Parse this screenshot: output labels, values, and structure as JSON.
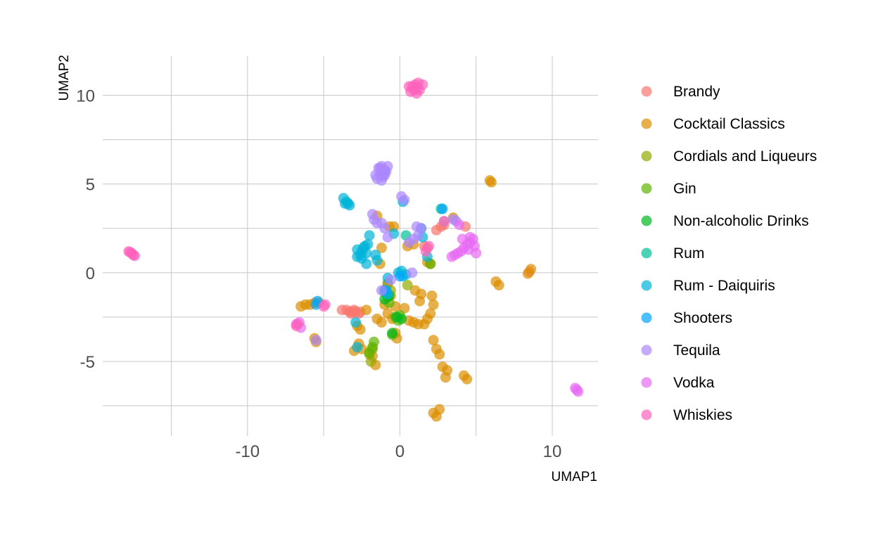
{
  "chart_data": {
    "type": "scatter",
    "title": "",
    "xlabel": "UMAP1",
    "ylabel": "UMAP2",
    "xlim": [
      -19.5,
      13
    ],
    "ylim": [
      -9.2,
      12.2
    ],
    "x_ticks": [
      -10,
      0,
      10
    ],
    "x_tick_labels": [
      "-10",
      "0",
      "10"
    ],
    "y_ticks": [
      -5,
      0,
      5,
      10
    ],
    "y_tick_labels": [
      "-5",
      "0",
      "5",
      "10"
    ],
    "x_minor_ticks": [
      -15,
      -5,
      5
    ],
    "y_minor_ticks": [
      -7.5,
      -2.5,
      2.5,
      7.5
    ],
    "grid": true,
    "legend_position": "right",
    "series": [
      {
        "name": "Brandy",
        "color": "#F8766D",
        "points": [
          [
            -3.8,
            -2.1
          ],
          [
            -3.5,
            -2.1
          ],
          [
            -3.3,
            -2.2
          ],
          [
            -3.1,
            -2.2
          ],
          [
            -2.9,
            -2.2
          ],
          [
            -2.7,
            -2.3
          ],
          [
            -3.2,
            -2.3
          ],
          [
            -2.6,
            -2.2
          ],
          [
            -0.8,
            -0.6
          ],
          [
            -0.9,
            -0.9
          ],
          [
            -1.0,
            -1.0
          ],
          [
            2.4,
            2.4
          ],
          [
            2.7,
            2.6
          ],
          [
            2.9,
            2.7
          ],
          [
            1.6,
            1.5
          ],
          [
            1.8,
            1.4
          ],
          [
            8.5,
            0.05
          ],
          [
            4.3,
            2.6
          ],
          [
            -3.0,
            -2.1
          ]
        ]
      },
      {
        "name": "Cocktail Classics",
        "color": "#DB8E00",
        "points": [
          [
            -6.5,
            -1.9
          ],
          [
            -6.2,
            -1.8
          ],
          [
            -5.9,
            -1.8
          ],
          [
            -5.6,
            -1.7
          ],
          [
            -5.3,
            -1.7
          ],
          [
            -5.6,
            -3.7
          ],
          [
            -5.5,
            -3.9
          ],
          [
            -2.8,
            -3.0
          ],
          [
            -2.6,
            -3.2
          ],
          [
            -2.2,
            -2.1
          ],
          [
            -2.7,
            -4.0
          ],
          [
            -2.5,
            -4.3
          ],
          [
            -3.0,
            -4.4
          ],
          [
            -1.8,
            -4.7
          ],
          [
            -1.6,
            -5.2
          ],
          [
            -1.5,
            -2.6
          ],
          [
            -1.2,
            -2.8
          ],
          [
            -0.8,
            -2.3
          ],
          [
            -0.5,
            -2.6
          ],
          [
            -0.3,
            -3.4
          ],
          [
            -0.2,
            -3.7
          ],
          [
            -0.6,
            -1.3
          ],
          [
            -0.3,
            -1.9
          ],
          [
            -1.0,
            -1.8
          ],
          [
            0.3,
            -2.0
          ],
          [
            0.6,
            -2.7
          ],
          [
            0.9,
            -2.8
          ],
          [
            1.2,
            -2.9
          ],
          [
            1.6,
            -2.9
          ],
          [
            1.8,
            -2.6
          ],
          [
            2.0,
            -2.3
          ],
          [
            2.2,
            -1.8
          ],
          [
            2.1,
            -1.3
          ],
          [
            1.4,
            -1.2
          ],
          [
            1.0,
            -1.0
          ],
          [
            1.3,
            -1.6
          ],
          [
            2.2,
            -3.8
          ],
          [
            2.4,
            -4.3
          ],
          [
            2.6,
            -4.6
          ],
          [
            2.8,
            -5.3
          ],
          [
            3.1,
            -5.5
          ],
          [
            3.0,
            -5.9
          ],
          [
            4.2,
            -5.8
          ],
          [
            4.4,
            -6.0
          ],
          [
            2.2,
            -7.9
          ],
          [
            2.6,
            -7.7
          ],
          [
            2.4,
            -8.1
          ],
          [
            6.3,
            -0.5
          ],
          [
            6.5,
            -0.7
          ],
          [
            8.6,
            0.2
          ],
          [
            8.4,
            -0.05
          ],
          [
            5.9,
            5.2
          ],
          [
            6.0,
            5.1
          ],
          [
            -0.7,
            2.6
          ],
          [
            -0.4,
            2.6
          ],
          [
            -1.5,
            3.2
          ],
          [
            0.5,
            1.5
          ],
          [
            0.9,
            1.6
          ],
          [
            3.5,
            3.1
          ],
          [
            2.9,
            2.9
          ],
          [
            2.0,
            0.5
          ],
          [
            1.8,
            0.6
          ],
          [
            -1.2,
            1.4
          ],
          [
            -1.3,
            0.5
          ]
        ]
      },
      {
        "name": "Cordials and Liqueurs",
        "color": "#93AA00",
        "points": [
          [
            -1.9,
            -5.0
          ],
          [
            -2.0,
            -4.6
          ],
          [
            -0.8,
            -0.6
          ],
          [
            -0.6,
            -1.0
          ],
          [
            0.5,
            -0.7
          ],
          [
            -1.8,
            -4.3
          ]
        ]
      },
      {
        "name": "Gin",
        "color": "#5EB300",
        "points": [
          [
            -1.8,
            -4.2
          ],
          [
            -1.7,
            -3.9
          ],
          [
            -2.0,
            -4.5
          ],
          [
            -1.0,
            -1.1
          ],
          [
            -0.8,
            -1.4
          ],
          [
            -0.7,
            -1.7
          ],
          [
            -0.3,
            -2.5
          ],
          [
            0.0,
            -2.4
          ],
          [
            -0.1,
            -2.7
          ],
          [
            -0.5,
            -3.5
          ],
          [
            2.0,
            0.5
          ]
        ]
      },
      {
        "name": "Non-alcoholic Drinks",
        "color": "#00B81F",
        "points": [
          [
            -0.7,
            -1.3
          ],
          [
            -0.5,
            -3.4
          ],
          [
            -0.2,
            -2.5
          ],
          [
            0.1,
            -2.6
          ],
          [
            -1.0,
            -1.5
          ]
        ]
      },
      {
        "name": "Rum",
        "color": "#00BF96",
        "points": [
          [
            0.4,
            2.1
          ],
          [
            2.7,
            3.6
          ],
          [
            -0.8,
            -1.2
          ]
        ]
      },
      {
        "name": "Rum - Daiquiris",
        "color": "#00B4D8",
        "points": [
          [
            -3.7,
            4.2
          ],
          [
            -3.5,
            4.0
          ],
          [
            -3.4,
            3.9
          ],
          [
            -3.3,
            3.8
          ],
          [
            -3.6,
            3.9
          ],
          [
            -2.8,
            0.9
          ],
          [
            -2.6,
            1.0
          ],
          [
            -2.5,
            1.2
          ],
          [
            -2.4,
            1.4
          ],
          [
            -2.3,
            1.5
          ],
          [
            -2.1,
            1.6
          ],
          [
            -2.0,
            2.1
          ],
          [
            -2.2,
            1.1
          ],
          [
            -2.5,
            0.8
          ],
          [
            -2.8,
            1.3
          ],
          [
            -1.5,
            0.7
          ],
          [
            -1.6,
            1.0
          ],
          [
            -2.9,
            -2.8
          ],
          [
            -2.8,
            -4.2
          ],
          [
            -0.4,
            2.2
          ],
          [
            0.1,
            0.1
          ],
          [
            -0.1,
            0.0
          ],
          [
            0.2,
            -0.2
          ],
          [
            0.4,
            -0.1
          ],
          [
            -0.8,
            -0.3
          ],
          [
            1.8,
            0.9
          ],
          [
            1.5,
            2.0
          ],
          [
            1.4,
            2.5
          ],
          [
            0.2,
            4.0
          ],
          [
            -1.0,
            -1.0
          ],
          [
            -0.8,
            -1.2
          ],
          [
            -2.2,
            0.5
          ]
        ]
      },
      {
        "name": "Shooters",
        "color": "#00A5FF",
        "points": [
          [
            -5.4,
            -1.6
          ],
          [
            -5.5,
            -1.8
          ],
          [
            -1.2,
            5.5
          ],
          [
            -1.0,
            5.7
          ],
          [
            -0.9,
            -1.0
          ],
          [
            2.8,
            3.6
          ],
          [
            0.0,
            -0.2
          ]
        ]
      },
      {
        "name": "Tequila",
        "color": "#AC88FF",
        "points": [
          [
            -1.4,
            5.9
          ],
          [
            -1.2,
            6.0
          ],
          [
            -1.0,
            5.8
          ],
          [
            -1.3,
            5.6
          ],
          [
            -1.1,
            5.4
          ],
          [
            -1.5,
            5.3
          ],
          [
            -0.9,
            5.7
          ],
          [
            -0.8,
            6.0
          ],
          [
            -1.2,
            5.2
          ],
          [
            -1.6,
            5.5
          ],
          [
            -1.0,
            5.5
          ],
          [
            -1.3,
            5.9
          ],
          [
            0.1,
            4.3
          ],
          [
            0.3,
            4.1
          ],
          [
            -1.7,
            3.0
          ],
          [
            -1.5,
            2.8
          ],
          [
            -1.2,
            2.8
          ],
          [
            -1.8,
            3.3
          ],
          [
            -1.0,
            2.5
          ],
          [
            -0.8,
            2.0
          ],
          [
            1.1,
            2.6
          ],
          [
            1.4,
            2.5
          ],
          [
            0.9,
            1.9
          ],
          [
            0.6,
            1.7
          ],
          [
            0.8,
            0.0
          ],
          [
            -1.2,
            -1.0
          ],
          [
            -0.6,
            -0.4
          ],
          [
            -5.5,
            -3.8
          ],
          [
            3.5,
            3.0
          ],
          [
            3.7,
            2.9
          ],
          [
            1.2,
            2.1
          ]
        ]
      },
      {
        "name": "Vodka",
        "color": "#E76BF3",
        "points": [
          [
            3.6,
            1.0
          ],
          [
            3.8,
            1.1
          ],
          [
            4.0,
            1.2
          ],
          [
            4.2,
            1.4
          ],
          [
            4.4,
            1.6
          ],
          [
            4.6,
            1.7
          ],
          [
            4.8,
            1.9
          ],
          [
            4.9,
            1.5
          ],
          [
            5.0,
            1.1
          ],
          [
            4.5,
            1.3
          ],
          [
            3.4,
            0.9
          ],
          [
            4.1,
            1.9
          ],
          [
            4.6,
            2.0
          ],
          [
            3.9,
            2.7
          ],
          [
            2.9,
            2.9
          ],
          [
            11.5,
            -6.5
          ],
          [
            11.6,
            -6.6
          ],
          [
            11.7,
            -6.7
          ],
          [
            -6.8,
            -2.9
          ],
          [
            -6.6,
            -2.8
          ],
          [
            -6.5,
            -3.1
          ]
        ]
      },
      {
        "name": "Whiskies",
        "color": "#FF62BC",
        "points": [
          [
            0.8,
            10.5
          ],
          [
            1.0,
            10.6
          ],
          [
            1.2,
            10.7
          ],
          [
            1.1,
            10.4
          ],
          [
            0.9,
            10.3
          ],
          [
            0.7,
            10.2
          ],
          [
            1.3,
            10.3
          ],
          [
            1.1,
            10.1
          ],
          [
            1.5,
            10.6
          ],
          [
            0.6,
            10.5
          ],
          [
            -17.8,
            1.2
          ],
          [
            -17.6,
            1.1
          ],
          [
            -17.5,
            1.0
          ],
          [
            -17.4,
            0.95
          ],
          [
            -17.7,
            1.15
          ],
          [
            -6.8,
            -3.0
          ],
          [
            -6.7,
            -2.9
          ],
          [
            -5.0,
            -1.9
          ],
          [
            -4.9,
            -1.8
          ],
          [
            1.9,
            1.5
          ],
          [
            1.7,
            1.2
          ]
        ]
      }
    ]
  }
}
